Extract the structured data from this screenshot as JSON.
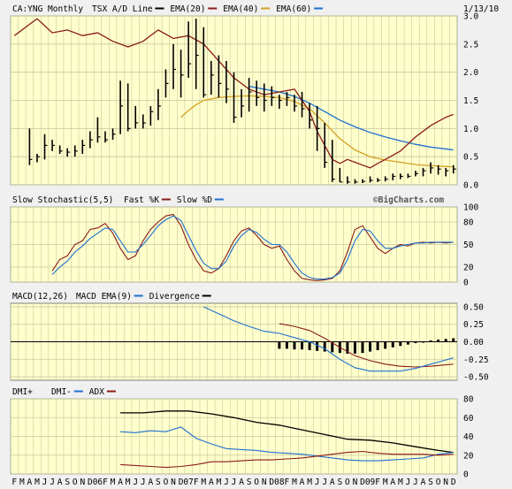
{
  "header": {
    "symbol": "CA:YNG Monthly",
    "legend": [
      {
        "label": "TSX A/D Line",
        "color": "#000000"
      },
      {
        "label": "EMA(20)",
        "color": "#8b1a1a"
      },
      {
        "label": "EMA(40)",
        "color": "#d4a020"
      },
      {
        "label": "EMA(60)",
        "color": "#1e6fd0"
      }
    ],
    "date": "1/13/10"
  },
  "watermark": "©BigCharts.com",
  "colors": {
    "plot_bg": "#ffffcc",
    "grid": "#c8c8a0",
    "border": "#808080",
    "frame_bg": "#f0f0f0",
    "black": "#000000",
    "red": "#8b1a1a",
    "orange": "#d4a020",
    "blue": "#1e6fd0"
  },
  "x_axis": {
    "labels": [
      "F",
      "M",
      "A",
      "M",
      "J",
      "J",
      "A",
      "S",
      "O",
      "N",
      "D",
      "06",
      "F",
      "M",
      "A",
      "M",
      "J",
      "J",
      "A",
      "S",
      "O",
      "N",
      "D",
      "07",
      "F",
      "M",
      "A",
      "M",
      "J",
      "J",
      "A",
      "S",
      "O",
      "N",
      "D",
      "08",
      "F",
      "M",
      "A",
      "M",
      "J",
      "J",
      "A",
      "S",
      "O",
      "N",
      "D",
      "09",
      "F",
      "M",
      "A",
      "M",
      "J",
      "J",
      "A",
      "S",
      "O",
      "N",
      "D"
    ],
    "start": "2005-02"
  },
  "chart_data": [
    {
      "type": "line",
      "panel": "price",
      "title": "CA:YNG Monthly",
      "ylim": [
        0,
        3.0
      ],
      "ticks": [
        "3.0",
        "2.5",
        "2.0",
        "1.5",
        "1.0",
        "0.5",
        "0.0"
      ],
      "tick_values": [
        3.0,
        2.5,
        2.0,
        1.5,
        1.0,
        0.5,
        0.0
      ],
      "ohlc": {
        "months": [
          "2005-04",
          "2005-05",
          "2005-06",
          "2005-07",
          "2005-08",
          "2005-09",
          "2005-10",
          "2005-11",
          "2005-12",
          "2006-01",
          "2006-02",
          "2006-03",
          "2006-04",
          "2006-05",
          "2006-06",
          "2006-07",
          "2006-08",
          "2006-09",
          "2006-10",
          "2006-11",
          "2006-12",
          "2007-01",
          "2007-02",
          "2007-03",
          "2007-04",
          "2007-05",
          "2007-06",
          "2007-07",
          "2007-08",
          "2007-09",
          "2007-10",
          "2007-11",
          "2007-12",
          "2008-01",
          "2008-02",
          "2008-03",
          "2008-04",
          "2008-05",
          "2008-06",
          "2008-07",
          "2008-08",
          "2008-09",
          "2008-10",
          "2008-11",
          "2008-12",
          "2009-01",
          "2009-02",
          "2009-03",
          "2009-04",
          "2009-05",
          "2009-06",
          "2009-07",
          "2009-08",
          "2009-09",
          "2009-10",
          "2009-11",
          "2009-12"
        ],
        "high": [
          1.0,
          0.55,
          0.9,
          0.8,
          0.7,
          0.65,
          0.7,
          0.8,
          0.95,
          1.2,
          0.95,
          1.0,
          1.85,
          1.8,
          1.4,
          1.25,
          1.4,
          1.7,
          2.05,
          2.5,
          2.4,
          2.9,
          2.95,
          2.8,
          2.2,
          2.3,
          2.2,
          2.0,
          1.7,
          1.9,
          1.85,
          1.8,
          1.75,
          1.6,
          1.65,
          1.6,
          1.65,
          1.45,
          1.4,
          1.1,
          0.8,
          0.3,
          0.15,
          0.1,
          0.1,
          0.15,
          0.12,
          0.15,
          0.2,
          0.2,
          0.2,
          0.25,
          0.3,
          0.4,
          0.35,
          0.3,
          0.35
        ],
        "low": [
          0.35,
          0.4,
          0.45,
          0.6,
          0.55,
          0.5,
          0.5,
          0.55,
          0.65,
          0.75,
          0.75,
          0.8,
          0.9,
          0.95,
          1.0,
          1.0,
          1.05,
          1.15,
          1.55,
          1.7,
          1.55,
          1.9,
          1.7,
          1.55,
          1.6,
          1.55,
          1.45,
          1.1,
          1.2,
          1.3,
          1.4,
          1.3,
          1.4,
          1.35,
          1.4,
          1.3,
          1.2,
          1.0,
          0.6,
          0.3,
          0.05,
          0.05,
          0.02,
          0.02,
          0.03,
          0.04,
          0.05,
          0.06,
          0.08,
          0.1,
          0.12,
          0.15,
          0.15,
          0.2,
          0.18,
          0.15,
          0.2
        ],
        "close": [
          0.45,
          0.5,
          0.7,
          0.7,
          0.6,
          0.58,
          0.6,
          0.7,
          0.8,
          0.85,
          0.8,
          0.9,
          1.4,
          1.0,
          1.1,
          1.1,
          1.3,
          1.4,
          1.8,
          2.05,
          1.95,
          2.15,
          2.3,
          1.6,
          1.95,
          1.8,
          1.7,
          1.2,
          1.4,
          1.65,
          1.55,
          1.5,
          1.55,
          1.5,
          1.55,
          1.4,
          1.35,
          1.15,
          1.0,
          0.4,
          0.1,
          0.05,
          0.05,
          0.05,
          0.06,
          0.08,
          0.08,
          0.1,
          0.15,
          0.15,
          0.15,
          0.2,
          0.25,
          0.3,
          0.28,
          0.25,
          0.28
        ]
      },
      "ema20": {
        "months": [
          "2005-02",
          "2005-04",
          "2005-05",
          "2005-07",
          "2005-09",
          "2005-11",
          "2006-01",
          "2006-03",
          "2006-05",
          "2006-07",
          "2006-09",
          "2006-11",
          "2007-01",
          "2007-03",
          "2007-05",
          "2007-07",
          "2007-09",
          "2007-11",
          "2008-01",
          "2008-03",
          "2008-05",
          "2008-06",
          "2008-07",
          "2008-08",
          "2008-09",
          "2008-10",
          "2008-11",
          "2008-12",
          "2009-01",
          "2009-02",
          "2009-03",
          "2009-05",
          "2009-07",
          "2009-09",
          "2009-11",
          "2009-12"
        ],
        "values": [
          2.65,
          2.85,
          2.95,
          2.7,
          2.75,
          2.65,
          2.7,
          2.55,
          2.45,
          2.55,
          2.75,
          2.6,
          2.65,
          2.5,
          2.2,
          1.9,
          1.7,
          1.6,
          1.65,
          1.7,
          1.3,
          0.95,
          0.7,
          0.45,
          0.38,
          0.45,
          0.4,
          0.35,
          0.3,
          0.38,
          0.45,
          0.6,
          0.85,
          1.05,
          1.2,
          1.25
        ]
      },
      "ema40": {
        "months": [
          "2006-12",
          "2007-01",
          "2007-02",
          "2007-03",
          "2007-05",
          "2007-07",
          "2007-09",
          "2007-11",
          "2008-01",
          "2008-03",
          "2008-05",
          "2008-07",
          "2008-09",
          "2008-11",
          "2009-01",
          "2009-03",
          "2009-05",
          "2009-07",
          "2009-09",
          "2009-12"
        ],
        "values": [
          1.2,
          1.32,
          1.42,
          1.5,
          1.55,
          1.57,
          1.58,
          1.57,
          1.55,
          1.48,
          1.35,
          1.1,
          0.82,
          0.62,
          0.5,
          0.44,
          0.4,
          0.36,
          0.34,
          0.32
        ]
      },
      "ema60": {
        "months": [
          "2007-09",
          "2007-11",
          "2008-01",
          "2008-03",
          "2008-05",
          "2008-07",
          "2008-09",
          "2008-11",
          "2009-01",
          "2009-03",
          "2009-05",
          "2009-07",
          "2009-09",
          "2009-12"
        ],
        "values": [
          1.75,
          1.7,
          1.65,
          1.57,
          1.45,
          1.3,
          1.15,
          1.03,
          0.93,
          0.85,
          0.78,
          0.72,
          0.67,
          0.62
        ]
      }
    },
    {
      "type": "line",
      "panel": "stochastic",
      "title": "Slow Stochastic(5,5)",
      "legend": [
        {
          "label": "Fast %K",
          "color": "#8b1a1a"
        },
        {
          "label": "Slow %D",
          "color": "#1e6fd0"
        }
      ],
      "ylim": [
        0,
        100
      ],
      "ticks": [
        "100",
        "80",
        "50",
        "20",
        "0"
      ],
      "tick_values": [
        100,
        80,
        50,
        20,
        0
      ],
      "fast_k": {
        "months": [
          "2005-07",
          "2005-08",
          "2005-09",
          "2005-10",
          "2005-11",
          "2005-12",
          "2006-01",
          "2006-02",
          "2006-03",
          "2006-04",
          "2006-05",
          "2006-06",
          "2006-07",
          "2006-08",
          "2006-09",
          "2006-10",
          "2006-11",
          "2006-12",
          "2007-01",
          "2007-02",
          "2007-03",
          "2007-04",
          "2007-05",
          "2007-06",
          "2007-07",
          "2007-08",
          "2007-09",
          "2007-10",
          "2007-11",
          "2007-12",
          "2008-01",
          "2008-02",
          "2008-03",
          "2008-04",
          "2008-05",
          "2008-06",
          "2008-07",
          "2008-08",
          "2008-09",
          "2008-10",
          "2008-11",
          "2008-12",
          "2009-01",
          "2009-02",
          "2009-03",
          "2009-04",
          "2009-05",
          "2009-06",
          "2009-07",
          "2009-08",
          "2009-09",
          "2009-10",
          "2009-11",
          "2009-12"
        ],
        "values": [
          15,
          30,
          35,
          50,
          55,
          70,
          72,
          78,
          65,
          45,
          30,
          35,
          55,
          70,
          80,
          88,
          90,
          75,
          50,
          30,
          15,
          12,
          18,
          35,
          55,
          68,
          72,
          62,
          50,
          45,
          48,
          30,
          15,
          5,
          3,
          2,
          3,
          5,
          15,
          40,
          70,
          75,
          60,
          45,
          38,
          45,
          50,
          48,
          52,
          53,
          52,
          53,
          52,
          53
        ]
      },
      "slow_d": {
        "months": [
          "2005-07",
          "2005-08",
          "2005-09",
          "2005-10",
          "2005-11",
          "2005-12",
          "2006-01",
          "2006-02",
          "2006-03",
          "2006-04",
          "2006-05",
          "2006-06",
          "2006-07",
          "2006-08",
          "2006-09",
          "2006-10",
          "2006-11",
          "2006-12",
          "2007-01",
          "2007-02",
          "2007-03",
          "2007-04",
          "2007-05",
          "2007-06",
          "2007-07",
          "2007-08",
          "2007-09",
          "2007-10",
          "2007-11",
          "2007-12",
          "2008-01",
          "2008-02",
          "2008-03",
          "2008-04",
          "2008-05",
          "2008-06",
          "2008-07",
          "2008-08",
          "2008-09",
          "2008-10",
          "2008-11",
          "2008-12",
          "2009-01",
          "2009-02",
          "2009-03",
          "2009-04",
          "2009-05",
          "2009-06",
          "2009-07",
          "2009-08",
          "2009-09",
          "2009-10",
          "2009-11",
          "2009-12"
        ],
        "values": [
          10,
          20,
          28,
          40,
          48,
          58,
          65,
          72,
          70,
          55,
          40,
          40,
          50,
          62,
          75,
          83,
          88,
          82,
          62,
          42,
          25,
          18,
          18,
          28,
          48,
          62,
          70,
          66,
          57,
          50,
          50,
          40,
          25,
          12,
          6,
          4,
          4,
          6,
          12,
          30,
          55,
          70,
          68,
          55,
          45,
          45,
          48,
          50,
          52,
          52,
          53,
          53,
          53,
          53
        ]
      }
    },
    {
      "type": "line",
      "panel": "macd",
      "title": "MACD(12,26)",
      "legend": [
        {
          "label": "MACD EMA(9)",
          "color": "#1e6fd0"
        },
        {
          "label": "Divergence",
          "color": "#000000"
        }
      ],
      "ylim": [
        -0.55,
        0.55
      ],
      "ticks": [
        "0.50",
        "0.25",
        "0.00",
        "-0.25",
        "-0.50"
      ],
      "tick_values": [
        0.5,
        0.25,
        0.0,
        -0.25,
        -0.5
      ],
      "macd": {
        "months": [
          "2007-03",
          "2007-05",
          "2007-07",
          "2007-09",
          "2007-11",
          "2008-01",
          "2008-03",
          "2008-05",
          "2008-07",
          "2008-09",
          "2008-11",
          "2009-01",
          "2009-03",
          "2009-05",
          "2009-07",
          "2009-09",
          "2009-11",
          "2009-12"
        ],
        "values": [
          0.5,
          0.4,
          0.3,
          0.22,
          0.15,
          0.12,
          0.06,
          0.0,
          -0.1,
          -0.25,
          -0.37,
          -0.42,
          -0.42,
          -0.42,
          -0.38,
          -0.32,
          -0.26,
          -0.23
        ]
      },
      "signal": {
        "months": [
          "2008-01",
          "2008-03",
          "2008-05",
          "2008-07",
          "2008-09",
          "2008-11",
          "2009-01",
          "2009-03",
          "2009-05",
          "2009-07",
          "2009-09",
          "2009-11",
          "2009-12"
        ],
        "values": [
          0.26,
          0.22,
          0.16,
          0.05,
          -0.08,
          -0.2,
          -0.27,
          -0.32,
          -0.35,
          -0.36,
          -0.35,
          -0.33,
          -0.32
        ]
      },
      "divergence": {
        "months": [
          "2008-01",
          "2008-02",
          "2008-03",
          "2008-04",
          "2008-05",
          "2008-06",
          "2008-07",
          "2008-08",
          "2008-09",
          "2008-10",
          "2008-11",
          "2008-12",
          "2009-01",
          "2009-02",
          "2009-03",
          "2009-04",
          "2009-05",
          "2009-06",
          "2009-07",
          "2009-08",
          "2009-09",
          "2009-10",
          "2009-11",
          "2009-12"
        ],
        "values": [
          -0.1,
          -0.1,
          -0.11,
          -0.11,
          -0.12,
          -0.13,
          -0.14,
          -0.15,
          -0.16,
          -0.17,
          -0.17,
          -0.16,
          -0.14,
          -0.12,
          -0.1,
          -0.08,
          -0.06,
          -0.04,
          -0.02,
          0.0,
          0.02,
          0.03,
          0.04,
          0.05
        ]
      }
    },
    {
      "type": "line",
      "panel": "dmi",
      "title": "DMI+",
      "legend": [
        {
          "label": "DMI-",
          "color": "#1e6fd0"
        },
        {
          "label": "ADX",
          "color": "#8b1a1a"
        }
      ],
      "ylim": [
        0,
        80
      ],
      "ticks": [
        "80",
        "60",
        "40",
        "20",
        "0"
      ],
      "tick_values": [
        80,
        60,
        40,
        20,
        0
      ],
      "adx": {
        "months": [
          "2006-04",
          "2006-07",
          "2006-10",
          "2007-01",
          "2007-04",
          "2007-07",
          "2007-10",
          "2008-01",
          "2008-04",
          "2008-07",
          "2008-10",
          "2009-01",
          "2009-04",
          "2009-07",
          "2009-10",
          "2009-12"
        ],
        "values": [
          65,
          65,
          67,
          67,
          64,
          60,
          55,
          52,
          47,
          42,
          37,
          36,
          33,
          29,
          25,
          23
        ]
      },
      "dmi_plus": {
        "months": [
          "2006-04",
          "2006-06",
          "2006-08",
          "2006-10",
          "2006-12",
          "2007-02",
          "2007-04",
          "2007-06",
          "2007-08",
          "2007-10",
          "2007-12",
          "2008-02",
          "2008-04",
          "2008-06",
          "2008-08",
          "2008-10",
          "2008-12",
          "2009-02",
          "2009-04",
          "2009-06",
          "2009-08",
          "2009-10",
          "2009-12"
        ],
        "values": [
          45,
          44,
          46,
          45,
          50,
          38,
          32,
          27,
          26,
          25,
          23,
          22,
          21,
          19,
          17,
          15,
          14,
          14,
          15,
          16,
          17,
          21,
          23
        ]
      },
      "dmi_minus": {
        "months": [
          "2006-04",
          "2006-06",
          "2006-08",
          "2006-10",
          "2006-12",
          "2007-02",
          "2007-04",
          "2007-06",
          "2007-08",
          "2007-10",
          "2007-12",
          "2008-02",
          "2008-04",
          "2008-06",
          "2008-08",
          "2008-10",
          "2008-12",
          "2009-02",
          "2009-04",
          "2009-06",
          "2009-08",
          "2009-10",
          "2009-12"
        ],
        "values": [
          10,
          9,
          8,
          7,
          8,
          10,
          13,
          13,
          14,
          15,
          15,
          16,
          17,
          19,
          21,
          23,
          24,
          22,
          21,
          21,
          21,
          20,
          21
        ]
      }
    }
  ]
}
